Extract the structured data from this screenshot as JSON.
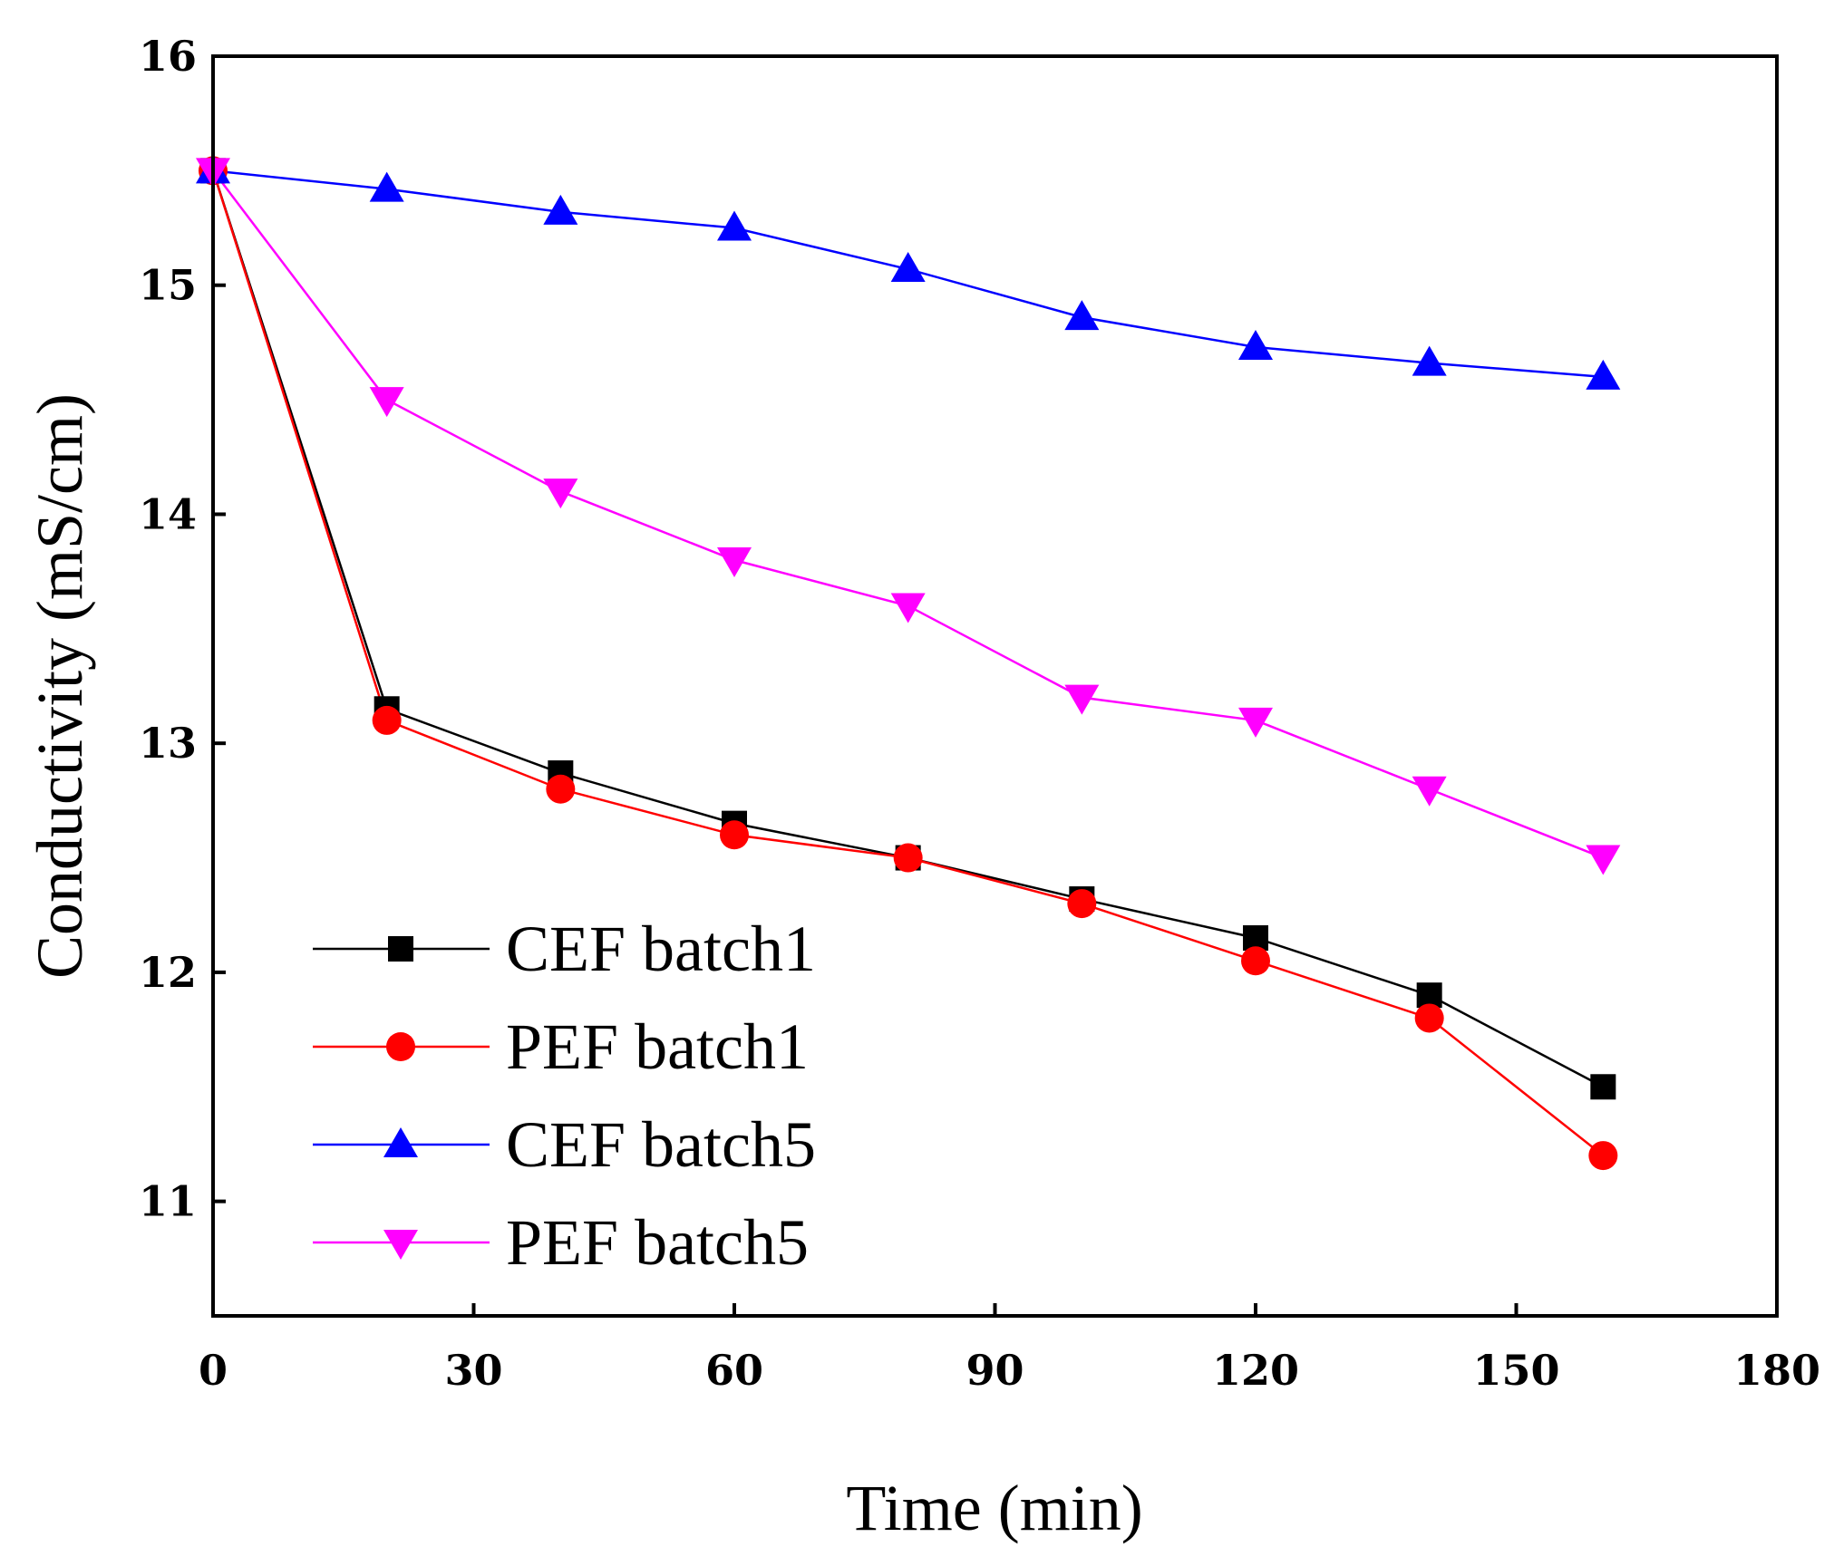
{
  "chart_data": {
    "type": "line",
    "title": "",
    "xlabel": "Time (min)",
    "ylabel": "Conductivity (mS/cm)",
    "xlim": [
      0,
      180
    ],
    "ylim": [
      10.5,
      16
    ],
    "xticks": [
      0,
      30,
      60,
      90,
      120,
      150,
      180
    ],
    "yticks": [
      11,
      12,
      13,
      14,
      15,
      16
    ],
    "grid": false,
    "legend_position": "bottom-left",
    "x": [
      0,
      20,
      40,
      60,
      80,
      100,
      120,
      140,
      160
    ],
    "series": [
      {
        "name": "CEF batch1",
        "color": "#000000",
        "marker": "square",
        "values": [
          15.5,
          13.15,
          12.87,
          12.65,
          12.5,
          12.32,
          12.15,
          11.9,
          11.5
        ]
      },
      {
        "name": "PEF batch1",
        "color": "#ff0000",
        "marker": "circle",
        "values": [
          15.5,
          13.1,
          12.8,
          12.6,
          12.5,
          12.3,
          12.05,
          11.8,
          11.2
        ]
      },
      {
        "name": "CEF batch5",
        "color": "#0000ff",
        "marker": "triangle-up",
        "values": [
          15.5,
          15.42,
          15.32,
          15.25,
          15.07,
          14.86,
          14.73,
          14.66,
          14.6
        ]
      },
      {
        "name": "PEF batch5",
        "color": "#ff00ff",
        "marker": "triangle-down",
        "values": [
          15.5,
          14.5,
          14.1,
          13.8,
          13.6,
          13.2,
          13.1,
          12.8,
          12.5
        ]
      }
    ]
  }
}
